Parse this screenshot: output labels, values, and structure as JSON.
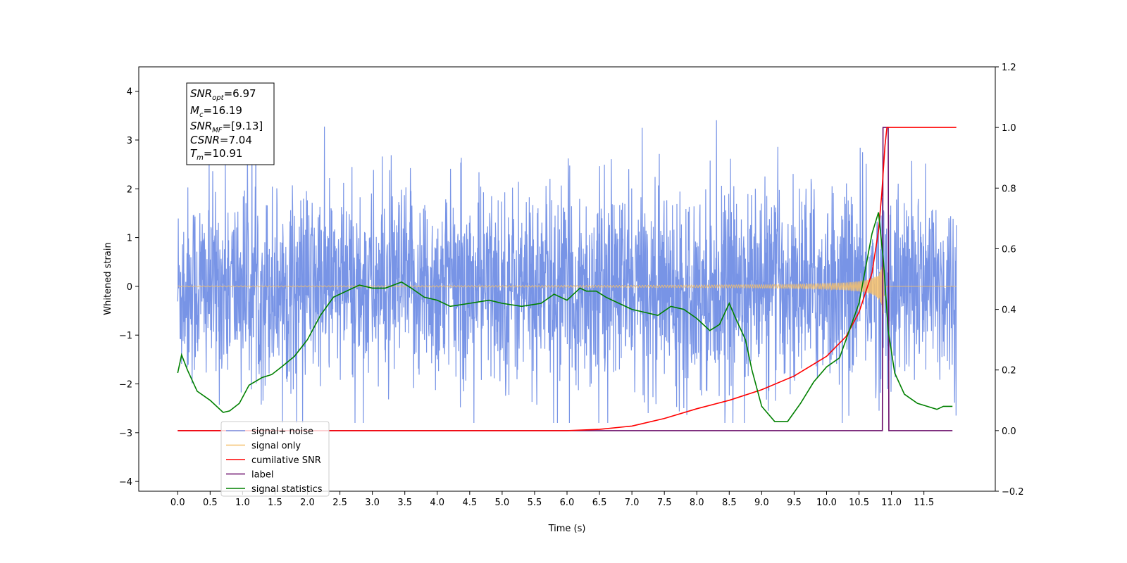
{
  "chart_data": {
    "type": "line",
    "title": "",
    "xlabel": "Time (s)",
    "ylabel": "Whitened strain",
    "xlim": [
      -0.6,
      12.6
    ],
    "ylim": [
      -4.2,
      4.5
    ],
    "y2lim": [
      -0.2,
      1.2
    ],
    "grid": false,
    "legend_position": "lower-left",
    "x_ticks": [
      "0.0",
      "0.5",
      "1.0",
      "1.5",
      "2.0",
      "2.5",
      "3.0",
      "3.5",
      "4.0",
      "4.5",
      "5.0",
      "5.5",
      "6.0",
      "6.5",
      "7.0",
      "7.5",
      "8.0",
      "8.5",
      "9.0",
      "9.5",
      "10.0",
      "10.5",
      "11.0",
      "11.5"
    ],
    "y_ticks": [
      "−4",
      "−3",
      "−2",
      "−1",
      "0",
      "1",
      "2",
      "3",
      "4"
    ],
    "y2_ticks": [
      "−0.2",
      "0.0",
      "0.2",
      "0.4",
      "0.6",
      "0.8",
      "1.0",
      "1.2"
    ],
    "annotation": [
      {
        "main": "SNR",
        "sub": "opt",
        "value": "=6.97"
      },
      {
        "main": "M",
        "sub": "c",
        "value": "=16.19"
      },
      {
        "main": "SNR",
        "sub": "MF",
        "value": "=[9.13]"
      },
      {
        "main": "CSNR",
        "sub": "",
        "value": "=7.04"
      },
      {
        "main": "T",
        "sub": "m",
        "value": "=10.91"
      }
    ],
    "series": [
      {
        "name": "signal+ noise",
        "color": "#7894e6",
        "axis": "left",
        "kind": "noise",
        "x_range": [
          0.0,
          12.0
        ],
        "approx_envelope": [
          -2.8,
          3.8
        ],
        "note_values": "dense random noise around 0"
      },
      {
        "name": "signal only",
        "color": "#f5c06b",
        "axis": "left",
        "kind": "chirp",
        "x_range": [
          0.0,
          12.0
        ],
        "merger_time": 10.91,
        "peak_amplitude": 0.65
      },
      {
        "name": "cumilative SNR",
        "color": "#ff0000",
        "axis": "right",
        "x": [
          0.0,
          6.0,
          6.5,
          7.0,
          7.5,
          8.0,
          8.5,
          9.0,
          9.5,
          10.0,
          10.3,
          10.5,
          10.7,
          10.8,
          10.85,
          10.9,
          10.93,
          11.0,
          11.5,
          12.0
        ],
        "values": [
          0.0,
          0.0,
          0.004,
          0.015,
          0.04,
          0.072,
          0.1,
          0.135,
          0.18,
          0.245,
          0.31,
          0.39,
          0.52,
          0.66,
          0.78,
          0.94,
          1.0,
          1.0,
          1.0,
          1.0
        ]
      },
      {
        "name": "label",
        "color": "#6a0d6a",
        "axis": "right",
        "x": [
          0.0,
          10.86,
          10.87,
          10.95,
          10.96,
          11.94
        ],
        "values": [
          0.0,
          0.0,
          1.0,
          1.0,
          0.0,
          0.0
        ]
      },
      {
        "name": "signal statistics",
        "color": "#008000",
        "axis": "right",
        "x": [
          0.0,
          0.06,
          0.15,
          0.3,
          0.5,
          0.7,
          0.8,
          0.95,
          1.1,
          1.3,
          1.45,
          1.6,
          1.8,
          2.0,
          2.2,
          2.4,
          2.6,
          2.8,
          3.0,
          3.2,
          3.45,
          3.6,
          3.8,
          4.0,
          4.2,
          4.5,
          4.8,
          5.0,
          5.3,
          5.6,
          5.8,
          6.0,
          6.2,
          6.3,
          6.45,
          6.6,
          6.8,
          7.0,
          7.2,
          7.4,
          7.6,
          7.8,
          8.0,
          8.2,
          8.35,
          8.5,
          8.6,
          8.75,
          8.85,
          9.0,
          9.2,
          9.4,
          9.6,
          9.8,
          10.0,
          10.2,
          10.5,
          10.7,
          10.8,
          10.88,
          10.95,
          11.05,
          11.2,
          11.4,
          11.55,
          11.7,
          11.8,
          11.94
        ],
        "values": [
          0.19,
          0.25,
          0.2,
          0.13,
          0.1,
          0.06,
          0.065,
          0.09,
          0.15,
          0.175,
          0.185,
          0.21,
          0.245,
          0.3,
          0.38,
          0.44,
          0.46,
          0.48,
          0.47,
          0.47,
          0.49,
          0.47,
          0.44,
          0.43,
          0.41,
          0.42,
          0.43,
          0.42,
          0.41,
          0.42,
          0.45,
          0.43,
          0.47,
          0.46,
          0.46,
          0.44,
          0.42,
          0.4,
          0.39,
          0.38,
          0.41,
          0.4,
          0.37,
          0.33,
          0.35,
          0.42,
          0.37,
          0.3,
          0.2,
          0.08,
          0.03,
          0.03,
          0.09,
          0.16,
          0.21,
          0.24,
          0.42,
          0.65,
          0.72,
          0.55,
          0.33,
          0.19,
          0.12,
          0.09,
          0.08,
          0.07,
          0.08,
          0.08
        ]
      }
    ]
  }
}
